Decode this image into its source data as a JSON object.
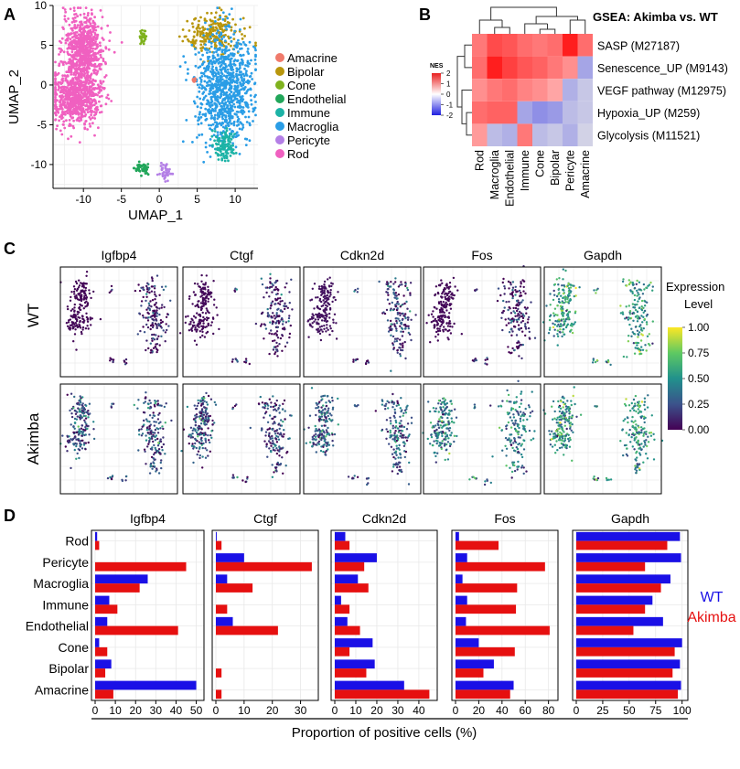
{
  "panel_letters": {
    "a": "A",
    "b": "B",
    "c": "C",
    "d": "D"
  },
  "chart_data": [
    {
      "id": "A",
      "type": "scatter",
      "title": "",
      "xlabel": "UMAP_1",
      "ylabel": "UMAP_2",
      "xlim": [
        -14,
        13
      ],
      "ylim": [
        -13,
        10
      ],
      "x_ticks": [
        -10,
        -5,
        0,
        5,
        10
      ],
      "y_ticks": [
        -10,
        -5,
        0,
        5,
        10
      ],
      "legend": [
        {
          "name": "Amacrine",
          "color": "#f07a6b"
        },
        {
          "name": "Bipolar",
          "color": "#b8960c"
        },
        {
          "name": "Cone",
          "color": "#7fb21e"
        },
        {
          "name": "Endothelial",
          "color": "#21a65a"
        },
        {
          "name": "Immune",
          "color": "#1cb3a6"
        },
        {
          "name": "Macroglia",
          "color": "#2a9de6"
        },
        {
          "name": "Pericyte",
          "color": "#b47fe6"
        },
        {
          "name": "Rod",
          "color": "#f060c0"
        }
      ],
      "clusters": [
        {
          "name": "Rod",
          "x": -10,
          "y": 4.5,
          "sx": 1.3,
          "sy": 2.2,
          "n": 700
        },
        {
          "name": "Rod",
          "x": -11,
          "y": -1.5,
          "sx": 1.6,
          "sy": 1.8,
          "n": 700
        },
        {
          "name": "Cone",
          "x": -2.2,
          "y": 6,
          "sx": 0.3,
          "sy": 0.4,
          "n": 30
        },
        {
          "name": "Bipolar",
          "x": 7.5,
          "y": 6.5,
          "sx": 2.0,
          "sy": 1.2,
          "n": 220
        },
        {
          "name": "Macroglia",
          "x": 8.5,
          "y": -0.5,
          "sx": 1.8,
          "sy": 3.5,
          "n": 900
        },
        {
          "name": "Amacrine",
          "x": 4.6,
          "y": 0.6,
          "sx": 0.15,
          "sy": 0.15,
          "n": 15
        },
        {
          "name": "Immune",
          "x": 8.5,
          "y": -7.8,
          "sx": 0.7,
          "sy": 1.0,
          "n": 120
        },
        {
          "name": "Endothelial",
          "x": -2.3,
          "y": -10.5,
          "sx": 0.6,
          "sy": 0.3,
          "n": 50
        },
        {
          "name": "Pericyte",
          "x": 0.8,
          "y": -11,
          "sx": 0.4,
          "sy": 0.5,
          "n": 40
        }
      ]
    },
    {
      "id": "B",
      "type": "heatmap",
      "title": "GSEA: Akimba vs. WT",
      "columns": [
        "Rod",
        "Macroglia",
        "Endothelial",
        "Immune",
        "Cone",
        "Bipolar",
        "Pericyte",
        "Amacrine"
      ],
      "rows": [
        "SASP (M27187)",
        "Senescence_UP (M9143)",
        "VEGF pathway (M12975)",
        "Hypoxia_UP (M259)",
        "Glycolysis (M11521)"
      ],
      "values": [
        [
          1.2,
          1.6,
          1.5,
          1.3,
          1.2,
          1.3,
          2.0,
          1.3
        ],
        [
          1.3,
          2.0,
          1.7,
          1.5,
          1.4,
          1.2,
          1.0,
          -0.8
        ],
        [
          1.0,
          1.2,
          1.3,
          1.1,
          1.0,
          0.8,
          -0.7,
          -0.5
        ],
        [
          1.3,
          1.4,
          1.4,
          -0.8,
          -1.0,
          -0.9,
          -0.6,
          -0.5
        ],
        [
          0.9,
          -0.6,
          -0.7,
          1.2,
          -0.6,
          -0.5,
          -0.7,
          -0.4
        ]
      ],
      "legend_title": "NES",
      "legend_ticks": [
        2,
        1,
        0,
        -1,
        -2
      ],
      "vmin": -2,
      "vmax": 2
    },
    {
      "id": "C",
      "type": "scatter",
      "genes": [
        "Igfbp4",
        "Ctgf",
        "Cdkn2d",
        "Fos",
        "Gapdh"
      ],
      "conditions": [
        "WT",
        "Akimba"
      ],
      "colorbar_title": "Expression Level",
      "colorbar_ticks": [
        "1.00",
        "0.75",
        "0.50",
        "0.25",
        "0.00"
      ],
      "mean_expression": {
        "WT": [
          0.05,
          0.08,
          0.15,
          0.06,
          0.55
        ],
        "Akimba": [
          0.25,
          0.2,
          0.3,
          0.4,
          0.5
        ]
      }
    },
    {
      "id": "D",
      "type": "bar",
      "orientation": "horizontal",
      "categories": [
        "Rod",
        "Pericyte",
        "Macroglia",
        "Immune",
        "Endothelial",
        "Cone",
        "Bipolar",
        "Amacrine"
      ],
      "xlabel": "Proportion of positive cells (%)",
      "legend": [
        {
          "name": "WT",
          "color": "#1a10e6"
        },
        {
          "name": "Akimba",
          "color": "#e61010"
        }
      ],
      "panels": [
        {
          "gene": "Igfbp4",
          "xlim": [
            0,
            52
          ],
          "ticks": [
            0,
            10,
            20,
            30,
            40,
            50
          ],
          "wt": [
            1,
            0,
            26,
            7,
            6,
            2,
            8,
            50
          ],
          "akimba": [
            2,
            45,
            22,
            11,
            41,
            6,
            5,
            9
          ]
        },
        {
          "gene": "Ctgf",
          "xlim": [
            0,
            35
          ],
          "ticks": [
            0,
            10,
            20,
            30
          ],
          "wt": [
            0.3,
            10,
            4,
            0,
            6,
            0,
            0,
            0
          ],
          "akimba": [
            2,
            34,
            13,
            4,
            22,
            0,
            2,
            2
          ]
        },
        {
          "gene": "Cdkn2d",
          "xlim": [
            0,
            47
          ],
          "ticks": [
            0,
            10,
            20,
            30,
            40
          ],
          "wt": [
            5,
            20,
            11,
            3,
            6,
            18,
            19,
            33
          ],
          "akimba": [
            7,
            14,
            16,
            7,
            12,
            7,
            15,
            45
          ]
        },
        {
          "gene": "Fos",
          "xlim": [
            0,
            85
          ],
          "ticks": [
            0,
            20,
            40,
            60,
            80
          ],
          "wt": [
            3,
            10,
            6,
            10,
            9,
            20,
            33,
            50
          ],
          "akimba": [
            37,
            77,
            53,
            52,
            81,
            51,
            24,
            47
          ]
        },
        {
          "gene": "Gapdh",
          "xlim": [
            0,
            102
          ],
          "ticks": [
            0,
            25,
            50,
            75,
            100
          ],
          "wt": [
            98,
            99,
            89,
            72,
            82,
            100,
            98,
            99
          ],
          "akimba": [
            86,
            65,
            80,
            65,
            54,
            93,
            91,
            96
          ]
        }
      ]
    }
  ]
}
